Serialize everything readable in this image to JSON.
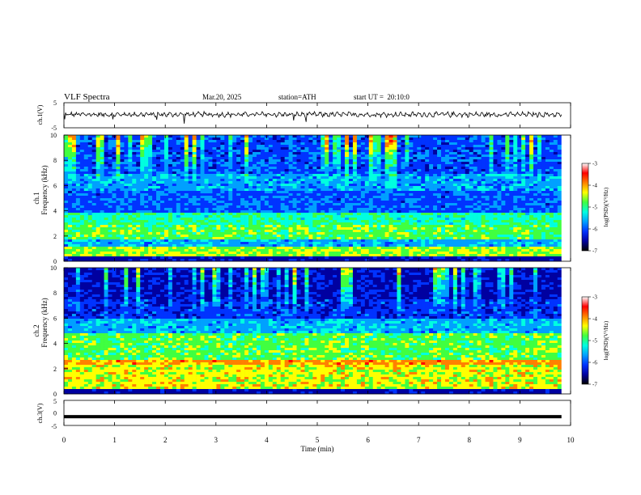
{
  "header": {
    "title": "VLF Spectra",
    "date": "Mar.20, 2025",
    "station": "station=ATH",
    "start": "start UT =  20:10:0"
  },
  "colors": {
    "spectrum_scale": [
      "#000000",
      "#0000a0",
      "#0033ff",
      "#00a0ff",
      "#00ffe0",
      "#40ff40",
      "#ffff00",
      "#ff8000",
      "#ff0000",
      "#ffffff"
    ],
    "trace": "#000000"
  },
  "chart_data": [
    {
      "type": "line",
      "name": "ch1-trace",
      "ylabel": "ch.1(V)",
      "ylim": [
        -5,
        5
      ],
      "yticks": [
        "5",
        "-5"
      ],
      "x_range": [
        0,
        10
      ],
      "y_approx_mean": 0.3
    },
    {
      "type": "heatmap",
      "name": "ch1-spectrogram",
      "ylabel_channel": "ch.1",
      "ylabel": "Frequency (kHz)",
      "ylim": [
        0,
        10
      ],
      "yticks": [
        "0",
        "2",
        "4",
        "6",
        "8",
        "10"
      ],
      "x_range": [
        0,
        10
      ],
      "colorbar": {
        "label": "log(PSD)(V²/Hz)",
        "range": [
          -7,
          -3
        ],
        "ticks": [
          "-3",
          "-4",
          "-5",
          "-6",
          "-7"
        ]
      }
    },
    {
      "type": "heatmap",
      "name": "ch2-spectrogram",
      "ylabel_channel": "ch.2",
      "ylabel": "Frequency (kHz)",
      "ylim": [
        0,
        10
      ],
      "yticks": [
        "0",
        "2",
        "4",
        "6",
        "8",
        "10"
      ],
      "x_range": [
        0,
        10
      ],
      "colorbar": {
        "label": "log(PSD)(V²/Hz)",
        "range": [
          -7,
          -3
        ],
        "ticks": [
          "-3",
          "-4",
          "-5",
          "-6",
          "-7"
        ]
      }
    },
    {
      "type": "line",
      "name": "ch3-trace",
      "ylabel": "ch.3(V)",
      "ylim": [
        -5,
        5
      ],
      "yticks": [
        "5",
        "0",
        "-5"
      ],
      "x_range": [
        0,
        10
      ],
      "y_approx_mean": -1.5
    }
  ],
  "xaxis": {
    "label": "Time (min)",
    "ticks": [
      "0",
      "1",
      "2",
      "3",
      "4",
      "5",
      "6",
      "7",
      "8",
      "9",
      "10"
    ]
  }
}
